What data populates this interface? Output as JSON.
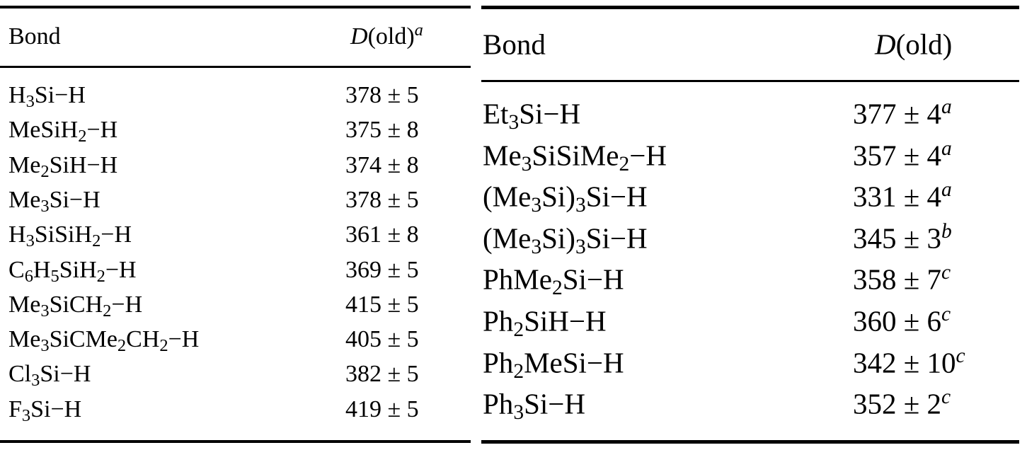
{
  "tables": [
    {
      "header": {
        "bond": "Bond",
        "value": {
          "symbol": "D",
          "text": "(old)",
          "note": "a"
        }
      },
      "rows": [
        {
          "bond": [
            "H",
            "3",
            "Si−H"
          ],
          "value": "378 ± 5"
        },
        {
          "bond": [
            "MeSiH",
            "2",
            "−H"
          ],
          "value": "375 ± 8"
        },
        {
          "bond": [
            "Me",
            "2",
            "SiH−H"
          ],
          "value": "374 ± 8"
        },
        {
          "bond": [
            "Me",
            "3",
            "Si−H"
          ],
          "value": "378 ± 5"
        },
        {
          "bond": [
            "H",
            "3",
            "SiSiH",
            "2",
            "−H"
          ],
          "value": "361 ± 8"
        },
        {
          "bond": [
            "C",
            "6",
            "H",
            "5",
            "SiH",
            "2",
            "−H"
          ],
          "value": "369 ± 5"
        },
        {
          "bond": [
            "Me",
            "3",
            "SiCH",
            "2",
            "−H"
          ],
          "value": "415 ± 5"
        },
        {
          "bond": [
            "Me",
            "3",
            "SiCMe",
            "2",
            "CH",
            "2",
            "−H"
          ],
          "value": "405 ± 5"
        },
        {
          "bond": [
            "Cl",
            "3",
            "Si−H"
          ],
          "value": "382 ± 5"
        },
        {
          "bond": [
            "F",
            "3",
            "Si−H"
          ],
          "value": "419 ± 5"
        }
      ]
    },
    {
      "header": {
        "bond": "Bond",
        "value": {
          "symbol": "D",
          "text": "(old)"
        }
      },
      "rows": [
        {
          "bond": [
            "Et",
            "3",
            "Si−H"
          ],
          "value": "377 ± 4",
          "note": "a"
        },
        {
          "bond": [
            "Me",
            "3",
            "SiSiMe",
            "2",
            "−H"
          ],
          "value": "357 ± 4",
          "note": "a"
        },
        {
          "bond": [
            "(Me",
            "3",
            "Si)",
            "3",
            "Si−H"
          ],
          "value": "331 ± 4",
          "note": "a"
        },
        {
          "bond": [
            "(Me",
            "3",
            "Si)",
            "3",
            "Si−H"
          ],
          "value": "345 ± 3",
          "note": "b"
        },
        {
          "bond": [
            "PhMe",
            "2",
            "Si−H"
          ],
          "value": "358 ± 7",
          "note": "c"
        },
        {
          "bond": [
            "Ph",
            "2",
            "SiH−H"
          ],
          "value": "360 ± 6",
          "note": "c"
        },
        {
          "bond": [
            "Ph",
            "2",
            "MeSi−H"
          ],
          "value": "342 ± 10",
          "note": "c"
        },
        {
          "bond": [
            "Ph",
            "3",
            "Si−H"
          ],
          "value": "352 ± 2",
          "note": "c"
        }
      ]
    }
  ]
}
